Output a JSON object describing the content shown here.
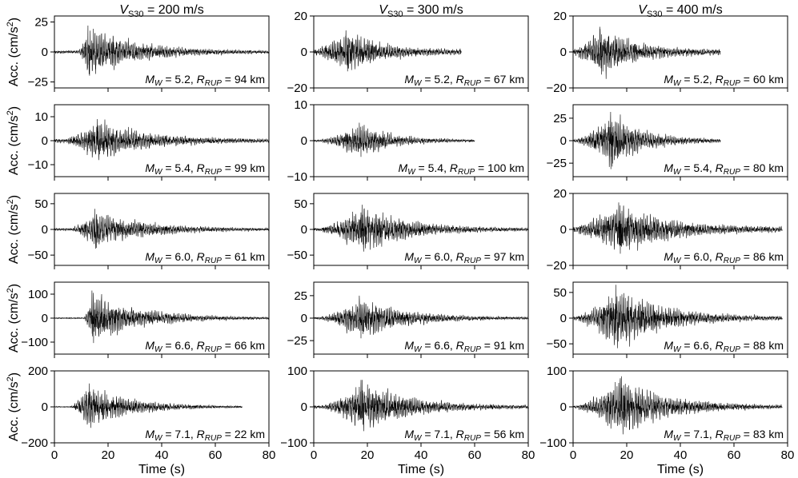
{
  "figure": {
    "column_titles": [
      {
        "v": "V",
        "sub": "S30",
        "rest": " = 200 m/s"
      },
      {
        "v": "V",
        "sub": "S30",
        "rest": " = 300 m/s"
      },
      {
        "v": "V",
        "sub": "S30",
        "rest": " = 400 m/s"
      }
    ],
    "ylabel": {
      "main": "Acc. (cm/s",
      "sup": "2",
      "close": ")"
    },
    "xlabel": "Time (s)",
    "x_ticks": [
      0,
      20,
      40,
      60,
      80
    ],
    "line_color": "#000000"
  },
  "chart_data": [
    {
      "type": "line",
      "col": 0,
      "row": 0,
      "ylim": [
        -30,
        30
      ],
      "yticks": [
        -25,
        0,
        25
      ],
      "mw": "5.2",
      "rrup": "94",
      "onset": 9,
      "peak_t": 12.5,
      "peak_amp": 22,
      "end": 80,
      "pre": 2
    },
    {
      "type": "line",
      "col": 0,
      "row": 1,
      "ylim": [
        -15,
        15
      ],
      "yticks": [
        -10,
        0,
        10
      ],
      "mw": "5.4",
      "rrup": "99",
      "onset": 5,
      "peak_t": 16,
      "peak_amp": 9,
      "end": 80,
      "pre": 1.5
    },
    {
      "type": "line",
      "col": 0,
      "row": 2,
      "ylim": [
        -70,
        70
      ],
      "yticks": [
        -50,
        0,
        50
      ],
      "mw": "6.0",
      "rrup": "61",
      "onset": 7,
      "peak_t": 15,
      "peak_amp": 40,
      "end": 80,
      "pre": 4
    },
    {
      "type": "line",
      "col": 0,
      "row": 3,
      "ylim": [
        -150,
        150
      ],
      "yticks": [
        -100,
        0,
        100
      ],
      "mw": "6.6",
      "rrup": "66",
      "onset": 11,
      "peak_t": 14,
      "peak_amp": 115,
      "end": 80,
      "pre": 4
    },
    {
      "type": "line",
      "col": 0,
      "row": 4,
      "ylim": [
        -200,
        200
      ],
      "yticks": [
        -200,
        0,
        200
      ],
      "mw": "7.1",
      "rrup": "22",
      "onset": 6,
      "peak_t": 13,
      "peak_amp": 130,
      "end": 70,
      "pre": 4
    },
    {
      "type": "line",
      "col": 1,
      "row": 0,
      "ylim": [
        -20,
        20
      ],
      "yticks": [
        -20,
        0,
        20
      ],
      "mw": "5.2",
      "rrup": "67",
      "onset": 2,
      "peak_t": 12,
      "peak_amp": 12,
      "end": 55,
      "pre": 3
    },
    {
      "type": "line",
      "col": 1,
      "row": 1,
      "ylim": [
        -10,
        10
      ],
      "yticks": [
        -10,
        0,
        10
      ],
      "mw": "5.4",
      "rrup": "100",
      "onset": 3,
      "peak_t": 17,
      "peak_amp": 5,
      "end": 60,
      "pre": 0.5
    },
    {
      "type": "line",
      "col": 1,
      "row": 2,
      "ylim": [
        -70,
        70
      ],
      "yticks": [
        -50,
        0,
        50
      ],
      "mw": "6.0",
      "rrup": "97",
      "onset": 3,
      "peak_t": 18,
      "peak_amp": 48,
      "end": 80,
      "pre": 5
    },
    {
      "type": "line",
      "col": 1,
      "row": 3,
      "ylim": [
        -40,
        40
      ],
      "yticks": [
        -25,
        0,
        25
      ],
      "mw": "6.6",
      "rrup": "91",
      "onset": 3,
      "peak_t": 17,
      "peak_amp": 25,
      "end": 80,
      "pre": 2
    },
    {
      "type": "line",
      "col": 1,
      "row": 4,
      "ylim": [
        -100,
        100
      ],
      "yticks": [
        -100,
        0,
        100
      ],
      "mw": "7.1",
      "rrup": "56",
      "onset": 4,
      "peak_t": 18,
      "peak_amp": 75,
      "end": 80,
      "pre": 8
    },
    {
      "type": "line",
      "col": 2,
      "row": 0,
      "ylim": [
        -20,
        20
      ],
      "yticks": [
        -20,
        0,
        20
      ],
      "mw": "5.2",
      "rrup": "60",
      "onset": 2,
      "peak_t": 10,
      "peak_amp": 14,
      "end": 55,
      "pre": 3
    },
    {
      "type": "line",
      "col": 2,
      "row": 1,
      "ylim": [
        -40,
        40
      ],
      "yticks": [
        -25,
        0,
        25
      ],
      "mw": "5.4",
      "rrup": "80",
      "onset": 2,
      "peak_t": 14,
      "peak_amp": 32,
      "end": 55,
      "pre": 3
    },
    {
      "type": "line",
      "col": 2,
      "row": 2,
      "ylim": [
        -20,
        20
      ],
      "yticks": [
        -20,
        0,
        20
      ],
      "mw": "6.0",
      "rrup": "86",
      "onset": 2,
      "peak_t": 17,
      "peak_amp": 15,
      "end": 78,
      "pre": 3
    },
    {
      "type": "line",
      "col": 2,
      "row": 3,
      "ylim": [
        -70,
        70
      ],
      "yticks": [
        -50,
        0,
        50
      ],
      "mw": "6.6",
      "rrup": "88",
      "onset": 2,
      "peak_t": 16,
      "peak_amp": 65,
      "end": 78,
      "pre": 6
    },
    {
      "type": "line",
      "col": 2,
      "row": 4,
      "ylim": [
        -100,
        100
      ],
      "yticks": [
        -100,
        0,
        100
      ],
      "mw": "7.1",
      "rrup": "83",
      "onset": 2,
      "peak_t": 18,
      "peak_amp": 85,
      "end": 78,
      "pre": 8
    }
  ]
}
